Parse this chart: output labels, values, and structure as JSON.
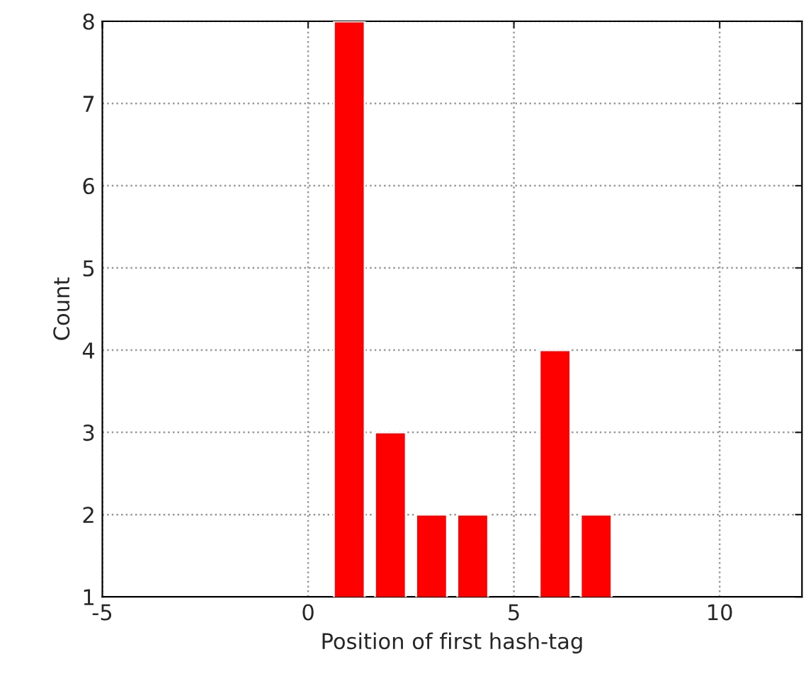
{
  "chart_data": {
    "type": "bar",
    "xlabel": "Position of first hash-tag",
    "ylabel": "Count",
    "x": [
      1,
      2,
      3,
      4,
      6,
      7
    ],
    "values": [
      8,
      3,
      2,
      2,
      4,
      2
    ],
    "color": "#ff0000",
    "xlim": [
      -5,
      12
    ],
    "xticks": [
      -5,
      0,
      5,
      10
    ],
    "ylim": [
      1,
      8
    ],
    "yticks": [
      1,
      2,
      3,
      4,
      5,
      6,
      7,
      8
    ],
    "grid": true
  }
}
